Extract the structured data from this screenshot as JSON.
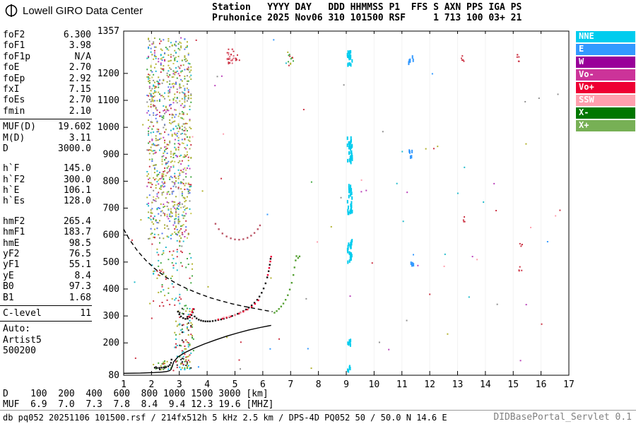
{
  "header": {
    "logo_title": "Lowell GIRO Data Center",
    "line1": "Station   YYYY DAY   DDD HHMMSS P1  FFS S AXN PPS IGA PS",
    "line2": "Pruhonice 2025 Nov06 310 101500 RSF     1 713 100 03+ 21"
  },
  "panel": {
    "groups": [
      {
        "rows": [
          [
            "foF2",
            "6.300"
          ],
          [
            "foF1",
            "3.98"
          ],
          [
            "foF1p",
            "N/A"
          ],
          [
            "foE",
            "2.70"
          ],
          [
            "foEp",
            "2.92"
          ],
          [
            "fxI",
            "7.15"
          ],
          [
            "foEs",
            "2.70"
          ],
          [
            "fmin",
            "2.10"
          ]
        ],
        "divider_after": true
      },
      {
        "rows": [
          [
            "MUF(D)",
            "19.602"
          ],
          [
            "M(D)",
            "3.11"
          ],
          [
            "D",
            "3000.0"
          ]
        ],
        "gap_after": true
      },
      {
        "rows": [
          [
            "h`F",
            "145.0"
          ],
          [
            "h`F2",
            "300.0"
          ],
          [
            "h`E",
            "106.1"
          ],
          [
            "h`Es",
            "128.0"
          ]
        ],
        "gap_after": true
      },
      {
        "rows": [
          [
            "hmF2",
            "265.4"
          ],
          [
            "hmF1",
            "183.7"
          ],
          [
            "hmE",
            "98.5"
          ],
          [
            "yF2",
            "76.5"
          ],
          [
            "yF1",
            "55.1"
          ],
          [
            "yE",
            "8.4"
          ],
          [
            "B0",
            "97.3"
          ],
          [
            "B1",
            "1.68"
          ]
        ],
        "divider_after": true
      },
      {
        "rows": [
          [
            "C-level",
            "11"
          ]
        ],
        "divider_after": true
      },
      {
        "rows": [
          [
            "Auto:",
            ""
          ],
          [
            "Artist5",
            ""
          ],
          [
            "500200",
            ""
          ]
        ]
      }
    ]
  },
  "legend": {
    "position": "right",
    "items": [
      {
        "label": "NNE",
        "color": "#00ccee"
      },
      {
        "label": "E",
        "color": "#3399ff"
      },
      {
        "label": "W",
        "color": "#990099"
      },
      {
        "label": "Vo-",
        "color": "#cc3399"
      },
      {
        "label": "Vo+",
        "color": "#ee0033"
      },
      {
        "label": "SSW",
        "color": "#ff9fae"
      },
      {
        "label": "X-",
        "color": "#007700"
      },
      {
        "label": "X+",
        "color": "#77b055"
      }
    ]
  },
  "chart_data": {
    "type": "scatter",
    "title": "Pruhonice ionogram 2025 Nov06 310 101500",
    "xlabel": "[MHZ]",
    "ylabel": "[km]",
    "xlim": [
      1,
      17
    ],
    "ylim": [
      80,
      1357
    ],
    "grid": false,
    "x_ticks": [
      1,
      2,
      3,
      4,
      5,
      6,
      7,
      8,
      9,
      10,
      11,
      12,
      13,
      14,
      15,
      16,
      17
    ],
    "y_ticks": [
      1357,
      1200,
      1100,
      1000,
      900,
      800,
      700,
      600,
      500,
      400,
      300,
      200,
      80
    ],
    "series": [
      {
        "name": "muf-transmission-curve",
        "type": "dashed",
        "color": "#000000",
        "points": [
          [
            1.0,
            622
          ],
          [
            1.2,
            585
          ],
          [
            1.5,
            541
          ],
          [
            1.8,
            506
          ],
          [
            2.1,
            477
          ],
          [
            2.5,
            445
          ],
          [
            2.9,
            420
          ],
          [
            3.3,
            400
          ],
          [
            3.7,
            383
          ],
          [
            4.1,
            368
          ],
          [
            4.5,
            356
          ],
          [
            4.9,
            345
          ],
          [
            5.3,
            336
          ],
          [
            5.7,
            328
          ],
          [
            6.0,
            322
          ],
          [
            6.35,
            316
          ]
        ]
      },
      {
        "name": "second-order-f-trace",
        "type": "dots",
        "color": "#bb5566",
        "points": [
          [
            4.3,
            642
          ],
          [
            4.42,
            622
          ],
          [
            4.55,
            606
          ],
          [
            4.7,
            595
          ],
          [
            4.85,
            588
          ],
          [
            5.0,
            584
          ],
          [
            5.15,
            583
          ],
          [
            5.3,
            585
          ],
          [
            5.45,
            590
          ],
          [
            5.58,
            598
          ],
          [
            5.7,
            608
          ],
          [
            5.82,
            622
          ],
          [
            5.9,
            636
          ]
        ]
      },
      {
        "name": "e-trace-o",
        "type": "dots",
        "color": "#111111",
        "points": [
          [
            2.12,
            108
          ],
          [
            2.2,
            107
          ],
          [
            2.28,
            107
          ],
          [
            2.36,
            108
          ],
          [
            2.44,
            109
          ],
          [
            2.52,
            110
          ],
          [
            2.6,
            113
          ],
          [
            2.66,
            118
          ],
          [
            2.7,
            126
          ],
          [
            2.72,
            138
          ]
        ]
      },
      {
        "name": "f-trace-o",
        "type": "dots",
        "color": "#111111",
        "points": [
          [
            2.95,
            316
          ],
          [
            3.0,
            306
          ],
          [
            3.06,
            298
          ],
          [
            3.14,
            292
          ],
          [
            3.22,
            289
          ],
          [
            3.3,
            290
          ],
          [
            3.38,
            295
          ],
          [
            3.44,
            303
          ],
          [
            3.48,
            313
          ],
          [
            3.52,
            325
          ],
          [
            3.55,
            298
          ],
          [
            3.62,
            291
          ],
          [
            3.7,
            286
          ],
          [
            3.78,
            283
          ],
          [
            3.86,
            281
          ],
          [
            3.94,
            280
          ],
          [
            4.02,
            280
          ],
          [
            4.1,
            280
          ],
          [
            4.2,
            281
          ],
          [
            4.3,
            283
          ],
          [
            4.4,
            285
          ],
          [
            4.5,
            287
          ],
          [
            4.6,
            290
          ],
          [
            4.7,
            293
          ],
          [
            4.8,
            296
          ],
          [
            4.9,
            300
          ],
          [
            5.0,
            304
          ],
          [
            5.1,
            308
          ],
          [
            5.2,
            313
          ],
          [
            5.3,
            318
          ],
          [
            5.4,
            324
          ],
          [
            5.5,
            331
          ],
          [
            5.6,
            339
          ],
          [
            5.7,
            349
          ],
          [
            5.8,
            360
          ],
          [
            5.88,
            372
          ],
          [
            5.96,
            386
          ],
          [
            6.03,
            402
          ],
          [
            6.1,
            421
          ],
          [
            6.16,
            443
          ],
          [
            6.21,
            466
          ],
          [
            6.25,
            490
          ],
          [
            6.28,
            512
          ]
        ]
      },
      {
        "name": "vo-plus-overlay",
        "type": "dots",
        "color": "#ee0033",
        "points": [
          [
            3.34,
            298
          ],
          [
            3.4,
            305
          ],
          [
            3.46,
            314
          ],
          [
            3.5,
            326
          ],
          [
            4.4,
            287
          ],
          [
            4.55,
            290
          ],
          [
            4.7,
            294
          ],
          [
            4.85,
            298
          ],
          [
            5.0,
            303
          ],
          [
            5.15,
            309
          ],
          [
            5.3,
            316
          ],
          [
            5.45,
            324
          ],
          [
            5.6,
            334
          ],
          [
            5.72,
            345
          ],
          [
            5.84,
            358
          ],
          [
            6.18,
            452
          ],
          [
            6.23,
            478
          ],
          [
            6.27,
            502
          ],
          [
            6.3,
            520
          ]
        ]
      },
      {
        "name": "ssw-overlay",
        "type": "dots",
        "color": "#ff9fae",
        "points": [
          [
            4.6,
            294
          ],
          [
            4.8,
            298
          ],
          [
            5.0,
            304
          ],
          [
            5.2,
            312
          ],
          [
            5.35,
            320
          ]
        ]
      },
      {
        "name": "x-trace",
        "type": "dots",
        "color": "#55a033",
        "points": [
          [
            6.42,
            312
          ],
          [
            6.5,
            318
          ],
          [
            6.58,
            326
          ],
          [
            6.66,
            335
          ],
          [
            6.74,
            346
          ],
          [
            6.82,
            360
          ],
          [
            6.9,
            377
          ],
          [
            6.97,
            398
          ],
          [
            7.04,
            423
          ],
          [
            7.1,
            452
          ],
          [
            7.14,
            480
          ],
          [
            7.18,
            506
          ],
          [
            7.21,
            522
          ],
          [
            7.27,
            515
          ],
          [
            7.32,
            521
          ]
        ]
      },
      {
        "name": "true-height-profile",
        "type": "line",
        "color": "#000000",
        "points": [
          [
            1.0,
            87
          ],
          [
            1.6,
            88
          ],
          [
            2.1,
            90
          ],
          [
            2.4,
            92
          ],
          [
            2.55,
            94
          ],
          [
            2.65,
            97
          ],
          [
            2.7,
            101
          ],
          [
            2.74,
            112
          ],
          [
            2.8,
            130
          ],
          [
            2.95,
            148
          ],
          [
            3.2,
            164
          ],
          [
            3.5,
            179
          ],
          [
            3.9,
            196
          ],
          [
            4.3,
            211
          ],
          [
            4.7,
            225
          ],
          [
            5.1,
            237
          ],
          [
            5.5,
            248
          ],
          [
            5.9,
            257
          ],
          [
            6.15,
            262
          ],
          [
            6.3,
            265
          ]
        ]
      }
    ],
    "noise_clusters": [
      {
        "x": [
          1.85,
          3.42
        ],
        "y": [
          585,
          1332
        ],
        "n": 900,
        "columnar": true,
        "colors": [
          "#b2b22e",
          "#b2b22e",
          "#c9c954",
          "#a4b040",
          "#cc3344",
          "#44aa44",
          "#22bbcc",
          "#bb44bb",
          "#5577ee",
          "#909090"
        ]
      },
      {
        "x": [
          2.0,
          3.45
        ],
        "y": [
          330,
          585
        ],
        "n": 90,
        "columnar": true,
        "colors": [
          "#b2b22e",
          "#44aa44",
          "#cc3344",
          "#22bbcc"
        ]
      },
      {
        "x": [
          2.85,
          3.5
        ],
        "y": [
          135,
          330
        ],
        "n": 90,
        "columnar": true,
        "colors": [
          "#b2b22e",
          "#44aa44",
          "#cc3344",
          "#22bbcc",
          "#222222"
        ]
      },
      {
        "x": [
          2.0,
          3.45
        ],
        "y": [
          96,
          134
        ],
        "n": 60,
        "columnar": true,
        "colors": [
          "#44aa33",
          "#cc3344",
          "#00bbee",
          "#b2b22e",
          "#222222"
        ]
      },
      {
        "x": [
          4.72,
          4.97
        ],
        "y": [
          1235,
          1292
        ],
        "n": 24,
        "columnar": true,
        "colors": [
          "#cc3344",
          "#dd6677"
        ]
      },
      {
        "x": [
          4.97,
          5.2
        ],
        "y": [
          1248,
          1270
        ],
        "n": 6,
        "colors": [
          "#cc3344"
        ]
      },
      {
        "x": [
          6.82,
          7.12
        ],
        "y": [
          1228,
          1280
        ],
        "n": 14,
        "colors": [
          "#cc3344",
          "#22bbcc",
          "#b2b22e",
          "#44aa44"
        ]
      },
      {
        "x": [
          9.04,
          9.22
        ],
        "y": [
          1230,
          1285
        ],
        "n": 18,
        "dash": true,
        "colors": [
          "#00ccee"
        ]
      },
      {
        "x": [
          9.04,
          9.22
        ],
        "y": [
          868,
          962
        ],
        "n": 30,
        "dash": true,
        "colors": [
          "#00ccee"
        ]
      },
      {
        "x": [
          9.04,
          9.22
        ],
        "y": [
          678,
          792
        ],
        "n": 26,
        "dash": true,
        "colors": [
          "#00ccee"
        ]
      },
      {
        "x": [
          9.04,
          9.22
        ],
        "y": [
          492,
          582
        ],
        "n": 22,
        "dash": true,
        "colors": [
          "#00ccee"
        ]
      },
      {
        "x": [
          9.05,
          9.18
        ],
        "y": [
          186,
          216
        ],
        "n": 6,
        "dash": true,
        "colors": [
          "#00ccee"
        ]
      },
      {
        "x": [
          9.05,
          9.18
        ],
        "y": [
          95,
          116
        ],
        "n": 5,
        "dash": true,
        "colors": [
          "#00ccee"
        ]
      },
      {
        "x": [
          11.24,
          11.42
        ],
        "y": [
          1236,
          1272
        ],
        "n": 7,
        "dash": true,
        "colors": [
          "#3399ff"
        ]
      },
      {
        "x": [
          11.24,
          11.38
        ],
        "y": [
          884,
          916
        ],
        "n": 5,
        "dash": true,
        "colors": [
          "#3399ff"
        ]
      },
      {
        "x": [
          11.3,
          11.42
        ],
        "y": [
          478,
          506
        ],
        "n": 4,
        "dash": true,
        "colors": [
          "#3399ff"
        ]
      },
      {
        "x": [
          13.14,
          13.3
        ],
        "y": [
          1244,
          1266
        ],
        "n": 5,
        "colors": [
          "#cc3344"
        ]
      },
      {
        "x": [
          13.16,
          13.28
        ],
        "y": [
          648,
          674
        ],
        "n": 4,
        "colors": [
          "#cc3344"
        ]
      },
      {
        "x": [
          15.14,
          15.36
        ],
        "y": [
          1244,
          1270
        ],
        "n": 6,
        "colors": [
          "#cc3344"
        ]
      },
      {
        "x": [
          15.2,
          15.32
        ],
        "y": [
          548,
          572
        ],
        "n": 4,
        "colors": [
          "#cc3344"
        ]
      },
      {
        "x": [
          15.2,
          15.32
        ],
        "y": [
          466,
          490
        ],
        "n": 4,
        "colors": [
          "#cc3344"
        ]
      },
      {
        "x": [
          1.3,
          16.7
        ],
        "y": [
          95,
          1330
        ],
        "n": 85,
        "colors": [
          "#cc3344",
          "#44aa44",
          "#22bbcc",
          "#bb44bb",
          "#3399ff",
          "#b2b22e",
          "#909090",
          "#ff9fae"
        ]
      }
    ]
  },
  "dmuf_table": {
    "rows": [
      "D    100  200  400  600  800 1000 1500 3000 [km]",
      "MUF  6.9  7.0  7.3  7.8  8.4  9.4 12.3 19.6 [MHZ]"
    ]
  },
  "footer": {
    "left": "db pq052 20251106 101500.rsf / 214fx512h 5 kHz 2.5 km / DPS-4D PQ052 50 / 50.0 N 14.6 E",
    "right": "DIDBasePortal_Servlet 0.1"
  }
}
